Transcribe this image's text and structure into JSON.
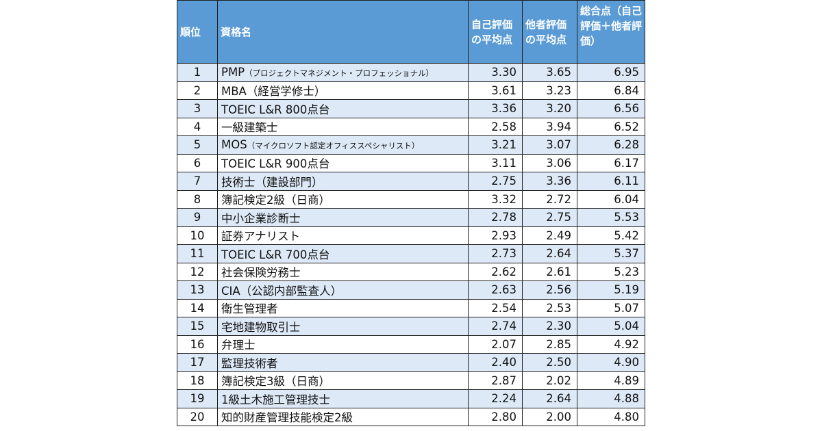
{
  "headers": {
    "rank": "順位",
    "name": "資格名",
    "self_avg": "自己評価の平均点",
    "other_avg": "他者評価の平均点",
    "total": "総合点（自己評価＋他者評価）"
  },
  "rows": [
    {
      "rank": "1",
      "name": "PMP",
      "note": "（プロジェクトマネジメント・プロフェッショナル）",
      "self": "3.30",
      "other": "3.65",
      "total": "6.95"
    },
    {
      "rank": "2",
      "name": "MBA（経営学修士）",
      "note": "",
      "self": "3.61",
      "other": "3.23",
      "total": "6.84"
    },
    {
      "rank": "3",
      "name": "TOEIC L&R 800点台",
      "note": "",
      "self": "3.36",
      "other": "3.20",
      "total": "6.56"
    },
    {
      "rank": "4",
      "name": "一級建築士",
      "note": "",
      "self": "2.58",
      "other": "3.94",
      "total": "6.52"
    },
    {
      "rank": "5",
      "name": "MOS",
      "note": "（マイクロソフト認定オフィススペシャリスト）",
      "self": "3.21",
      "other": "3.07",
      "total": "6.28"
    },
    {
      "rank": "6",
      "name": "TOEIC L&R 900点台",
      "note": "",
      "self": "3.11",
      "other": "3.06",
      "total": "6.17"
    },
    {
      "rank": "7",
      "name": "技術士（建設部門）",
      "note": "",
      "self": "2.75",
      "other": "3.36",
      "total": "6.11"
    },
    {
      "rank": "8",
      "name": "簿記検定2級（日商）",
      "note": "",
      "self": "3.32",
      "other": "2.72",
      "total": "6.04"
    },
    {
      "rank": "9",
      "name": "中小企業診断士",
      "note": "",
      "self": "2.78",
      "other": "2.75",
      "total": "5.53"
    },
    {
      "rank": "10",
      "name": "証券アナリスト",
      "note": "",
      "self": "2.93",
      "other": "2.49",
      "total": "5.42"
    },
    {
      "rank": "11",
      "name": "TOEIC L&R 700点台",
      "note": "",
      "self": "2.73",
      "other": "2.64",
      "total": "5.37"
    },
    {
      "rank": "12",
      "name": "社会保険労務士",
      "note": "",
      "self": "2.62",
      "other": "2.61",
      "total": "5.23"
    },
    {
      "rank": "13",
      "name": "CIA（公認内部監査人）",
      "note": "",
      "self": "2.63",
      "other": "2.56",
      "total": "5.19"
    },
    {
      "rank": "14",
      "name": "衛生管理者",
      "note": "",
      "self": "2.54",
      "other": "2.53",
      "total": "5.07"
    },
    {
      "rank": "15",
      "name": "宅地建物取引士",
      "note": "",
      "self": "2.74",
      "other": "2.30",
      "total": "5.04"
    },
    {
      "rank": "16",
      "name": "弁理士",
      "note": "",
      "self": "2.07",
      "other": "2.85",
      "total": "4.92"
    },
    {
      "rank": "17",
      "name": "監理技術者",
      "note": "",
      "self": "2.40",
      "other": "2.50",
      "total": "4.90"
    },
    {
      "rank": "18",
      "name": "簿記検定3級（日商）",
      "note": "",
      "self": "2.87",
      "other": "2.02",
      "total": "4.89"
    },
    {
      "rank": "19",
      "name": "1級土木施工管理技士",
      "note": "",
      "self": "2.24",
      "other": "2.64",
      "total": "4.88"
    },
    {
      "rank": "20",
      "name": "知的財産管理技能検定2級",
      "note": "",
      "self": "2.80",
      "other": "2.00",
      "total": "4.80"
    }
  ]
}
